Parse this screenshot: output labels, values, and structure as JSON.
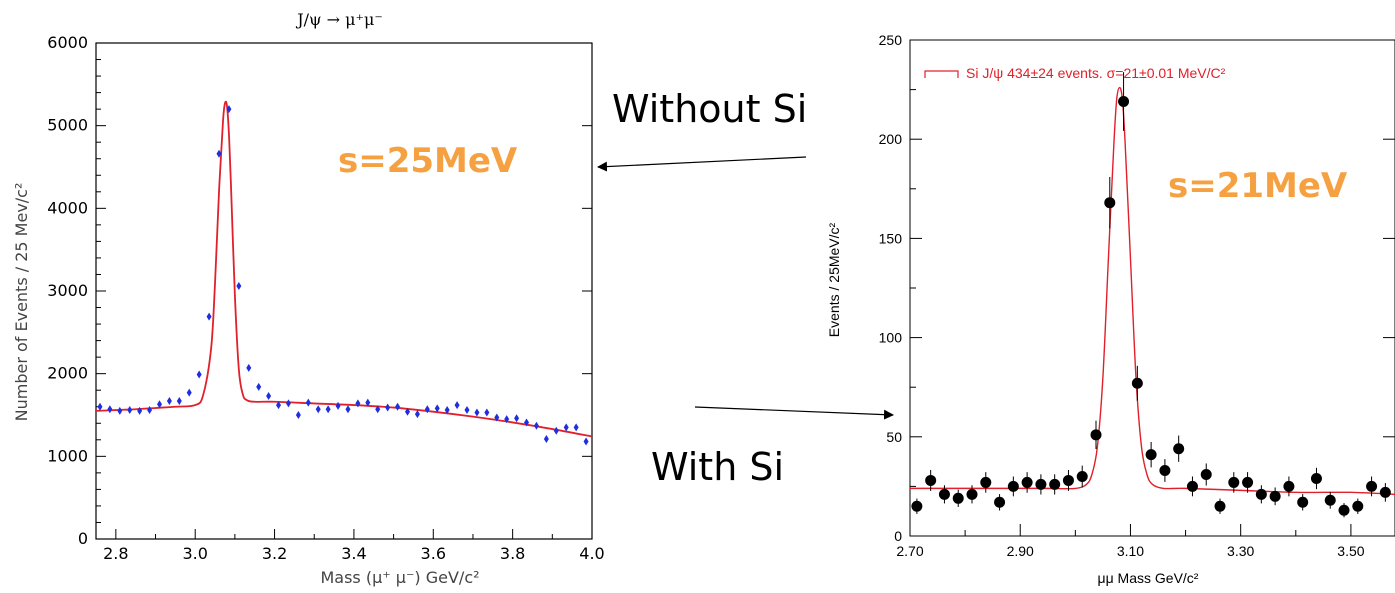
{
  "chart_data": [
    {
      "type": "scatter",
      "title": "J/ψ → μ⁺μ⁻",
      "xlabel": "Mass (μ⁺ μ⁻)     GeV/c²",
      "ylabel": "Number of Events / 25 Mev/c²",
      "xlim": [
        2.75,
        4.0
      ],
      "ylim": [
        0,
        6000
      ],
      "x_ticks": [
        "2.8",
        "3.0",
        "3.2",
        "3.4",
        "3.6",
        "3.8",
        "4.0"
      ],
      "y_ticks": [
        "0",
        "1000",
        "2000",
        "3000",
        "4000",
        "5000",
        "6000"
      ],
      "annotation": "s=25MeV",
      "colors": {
        "points": "#1f2fe0",
        "fit": "#e0202a"
      },
      "series": [
        {
          "kind": "points",
          "x": [
            2.76,
            2.785,
            2.81,
            2.835,
            2.86,
            2.885,
            2.91,
            2.935,
            2.96,
            2.985,
            3.01,
            3.035,
            3.06,
            3.085,
            3.11,
            3.135,
            3.16,
            3.185,
            3.21,
            3.235,
            3.26,
            3.285,
            3.31,
            3.335,
            3.36,
            3.385,
            3.41,
            3.435,
            3.46,
            3.485,
            3.51,
            3.535,
            3.56,
            3.585,
            3.61,
            3.635,
            3.66,
            3.685,
            3.71,
            3.735,
            3.76,
            3.785,
            3.81,
            3.835,
            3.86,
            3.885,
            3.91,
            3.935,
            3.96,
            3.985
          ],
          "y": [
            1600,
            1570,
            1550,
            1560,
            1550,
            1560,
            1630,
            1670,
            1670,
            1770,
            1990,
            2690,
            4660,
            5200,
            3060,
            2070,
            1840,
            1730,
            1620,
            1640,
            1500,
            1650,
            1570,
            1570,
            1610,
            1570,
            1640,
            1650,
            1570,
            1590,
            1600,
            1540,
            1510,
            1570,
            1580,
            1560,
            1620,
            1560,
            1530,
            1530,
            1470,
            1450,
            1460,
            1410,
            1370,
            1210,
            1310,
            1350,
            1350,
            1180
          ]
        },
        {
          "kind": "fit",
          "x": [
            2.75,
            2.8,
            2.85,
            2.9,
            2.95,
            3.0,
            3.02,
            3.04,
            3.05,
            3.06,
            3.07,
            3.075,
            3.08,
            3.085,
            3.09,
            3.1,
            3.11,
            3.12,
            3.13,
            3.15,
            3.2,
            3.3,
            3.4,
            3.5,
            3.6,
            3.7,
            3.8,
            3.9,
            4.0
          ],
          "y": [
            1550,
            1560,
            1570,
            1585,
            1600,
            1620,
            1740,
            2300,
            3100,
            4200,
            5050,
            5270,
            5240,
            4900,
            4300,
            2950,
            2050,
            1750,
            1680,
            1660,
            1660,
            1640,
            1620,
            1590,
            1540,
            1480,
            1410,
            1330,
            1240
          ]
        }
      ]
    },
    {
      "type": "scatter",
      "xlabel": "μμ Mass GeV/c²",
      "ylabel": "Events / 25MeV/c²",
      "xlim": [
        2.7,
        3.58
      ],
      "ylim": [
        0,
        250
      ],
      "x_ticks": [
        "2.70",
        "2.90",
        "3.10",
        "3.30",
        "3.50"
      ],
      "y_ticks": [
        "0",
        "50",
        "100",
        "150",
        "200",
        "250"
      ],
      "legend": "Si J/ψ 434±24 events. σ=21±0.01 MeV/C²",
      "legend_position": "top-left",
      "annotation": "s=21MeV",
      "colors": {
        "points": "#000000",
        "fit": "#e0202a"
      },
      "series": [
        {
          "kind": "points",
          "x": [
            2.7125,
            2.7375,
            2.7625,
            2.7875,
            2.8125,
            2.8375,
            2.8625,
            2.8875,
            2.9125,
            2.9375,
            2.9625,
            2.9875,
            3.0125,
            3.0375,
            3.0625,
            3.0875,
            3.1125,
            3.1375,
            3.1625,
            3.1875,
            3.2125,
            3.2375,
            3.2625,
            3.2875,
            3.3125,
            3.3375,
            3.3625,
            3.3875,
            3.4125,
            3.4375,
            3.4625,
            3.4875,
            3.5125,
            3.5375,
            3.5625
          ],
          "y": [
            15,
            28,
            21,
            19,
            21,
            27,
            17,
            25,
            27,
            26,
            26,
            28,
            30,
            51,
            168,
            219,
            77,
            41,
            33,
            44,
            25,
            31,
            15,
            27,
            27,
            21,
            20,
            25,
            17,
            29,
            18,
            13,
            15,
            25,
            22
          ]
        },
        {
          "kind": "fit",
          "x": [
            2.7,
            2.8,
            2.9,
            2.95,
            3.0,
            3.02,
            3.03,
            3.04,
            3.05,
            3.06,
            3.07,
            3.075,
            3.08,
            3.085,
            3.09,
            3.1,
            3.11,
            3.12,
            3.13,
            3.14,
            3.16,
            3.2,
            3.3,
            3.4,
            3.5,
            3.58
          ],
          "y": [
            24,
            24,
            24,
            24,
            24,
            26,
            31,
            45,
            80,
            140,
            198,
            220,
            226,
            221,
            200,
            140,
            80,
            45,
            31,
            26,
            24,
            24,
            23,
            22,
            22,
            21
          ]
        }
      ]
    }
  ],
  "callouts": {
    "without": "Without Si",
    "with": "With Si"
  }
}
